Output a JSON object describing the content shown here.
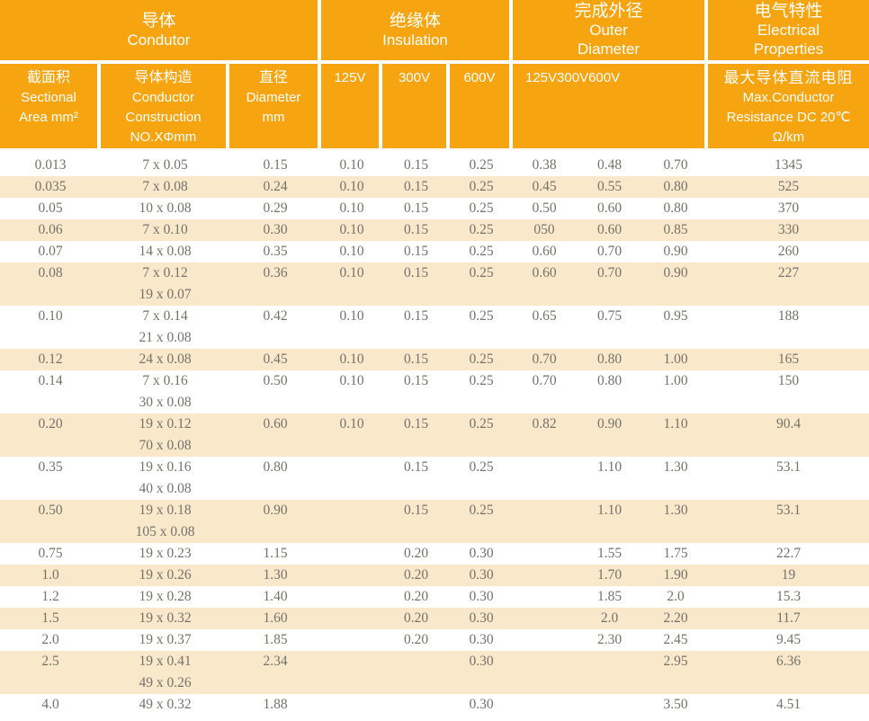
{
  "colors": {
    "header_orange": "#F6A40F",
    "stripe_cream": "#FAE8CB",
    "text_gray": "#73726B",
    "header_text": "#FFFFFF"
  },
  "header": {
    "groups": {
      "conductor": [
        "导体",
        "Condutor"
      ],
      "insulation": [
        "绝缘体",
        "Insulation"
      ],
      "outer_diameter": [
        "完成外径",
        "Outer",
        "Diameter"
      ],
      "electrical": [
        "电气特性",
        "Electrical",
        "Properties"
      ]
    },
    "sub": {
      "sectional_area": [
        "截面积",
        "Sectional",
        "Area mm²"
      ],
      "construction": [
        "导体构造",
        "Conductor",
        "Construction",
        "NO.XΦmm"
      ],
      "diameter": [
        "直径",
        "Diameter",
        "mm"
      ],
      "insulation_voltages": [
        "125V",
        "300V",
        "600V"
      ],
      "outer_diameter_voltages": [
        "125V",
        "300V",
        "600V"
      ],
      "resistance": [
        "最大导体直流电阻",
        "Max.Conductor",
        "Resistance DC 20℃",
        "Ω/km"
      ]
    }
  },
  "rows": [
    {
      "area": "0.013",
      "construction": [
        "7 x 0.05"
      ],
      "diameter": "0.15",
      "ins": [
        "0.10",
        "0.15",
        "0.25"
      ],
      "od": [
        "0.38",
        "0.48",
        "0.70"
      ],
      "resistance": "1345"
    },
    {
      "area": "0.035",
      "construction": [
        "7 x 0.08"
      ],
      "diameter": "0.24",
      "ins": [
        "0.10",
        "0.15",
        "0.25"
      ],
      "od": [
        "0.45",
        "0.55",
        "0.80"
      ],
      "resistance": "525"
    },
    {
      "area": "0.05",
      "construction": [
        "10 x 0.08"
      ],
      "diameter": "0.29",
      "ins": [
        "0.10",
        "0.15",
        "0.25"
      ],
      "od": [
        "0.50",
        "0.60",
        "0.80"
      ],
      "resistance": "370"
    },
    {
      "area": "0.06",
      "construction": [
        "7 x 0.10"
      ],
      "diameter": "0.30",
      "ins": [
        "0.10",
        "0.15",
        "0.25"
      ],
      "od": [
        "050",
        "0.60",
        "0.85"
      ],
      "resistance": "330"
    },
    {
      "area": "0.07",
      "construction": [
        "14 x 0.08"
      ],
      "diameter": "0.35",
      "ins": [
        "0.10",
        "0.15",
        "0.25"
      ],
      "od": [
        "0.60",
        "0.70",
        "0.90"
      ],
      "resistance": "260"
    },
    {
      "area": "0.08",
      "construction": [
        "7 x 0.12",
        "19 x 0.07"
      ],
      "diameter": "0.36",
      "ins": [
        "0.10",
        "0.15",
        "0.25"
      ],
      "od": [
        "0.60",
        "0.70",
        "0.90"
      ],
      "resistance": "227"
    },
    {
      "area": "0.10",
      "construction": [
        "7 x 0.14",
        "21 x 0.08"
      ],
      "diameter": "0.42",
      "ins": [
        "0.10",
        "0.15",
        "0.25"
      ],
      "od": [
        "0.65",
        "0.75",
        "0.95"
      ],
      "resistance": "188"
    },
    {
      "area": "0.12",
      "construction": [
        "24 x 0.08"
      ],
      "diameter": "0.45",
      "ins": [
        "0.10",
        "0.15",
        "0.25"
      ],
      "od": [
        "0.70",
        "0.80",
        "1.00"
      ],
      "resistance": "165"
    },
    {
      "area": "0.14",
      "construction": [
        "7 x 0.16",
        "30 x 0.08"
      ],
      "diameter": "0.50",
      "ins": [
        "0.10",
        "0.15",
        "0.25"
      ],
      "od": [
        "0.70",
        "0.80",
        "1.00"
      ],
      "resistance": "150"
    },
    {
      "area": "0.20",
      "construction": [
        "19 x 0.12",
        "70 x 0.08"
      ],
      "diameter": "0.60",
      "ins": [
        "0.10",
        "0.15",
        "0.25"
      ],
      "od": [
        "0.82",
        "0.90",
        "1.10"
      ],
      "resistance": "90.4"
    },
    {
      "area": "0.35",
      "construction": [
        "19 x 0.16",
        "40 x 0.08"
      ],
      "diameter": "0.80",
      "ins": [
        "",
        "0.15",
        "0.25"
      ],
      "od": [
        "",
        "1.10",
        "1.30"
      ],
      "resistance": "53.1"
    },
    {
      "area": "0.50",
      "construction": [
        "19 x 0.18",
        "105 x 0.08"
      ],
      "diameter": "0.90",
      "ins": [
        "",
        "0.15",
        "0.25"
      ],
      "od": [
        "",
        "1.10",
        "1.30"
      ],
      "resistance": "53.1"
    },
    {
      "area": "0.75",
      "construction": [
        "19 x 0.23"
      ],
      "diameter": "1.15",
      "ins": [
        "",
        "0.20",
        "0.30"
      ],
      "od": [
        "",
        "1.55",
        "1.75"
      ],
      "resistance": "22.7"
    },
    {
      "area": "1.0",
      "construction": [
        "19 x 0.26"
      ],
      "diameter": "1.30",
      "ins": [
        "",
        "0.20",
        "0.30"
      ],
      "od": [
        "",
        "1.70",
        "1.90"
      ],
      "resistance": "19"
    },
    {
      "area": "1.2",
      "construction": [
        "19 x 0.28"
      ],
      "diameter": "1.40",
      "ins": [
        "",
        "0.20",
        "0.30"
      ],
      "od": [
        "",
        "1.85",
        "2.0"
      ],
      "resistance": "15.3"
    },
    {
      "area": "1.5",
      "construction": [
        "19 x 0.32"
      ],
      "diameter": "1.60",
      "ins": [
        "",
        "0.20",
        "0.30"
      ],
      "od": [
        "",
        "2.0",
        "2.20"
      ],
      "resistance": "11.7"
    },
    {
      "area": "2.0",
      "construction": [
        "19 x 0.37"
      ],
      "diameter": "1.85",
      "ins": [
        "",
        "0.20",
        "0.30"
      ],
      "od": [
        "",
        "2.30",
        "2.45"
      ],
      "resistance": "9.45"
    },
    {
      "area": "2.5",
      "construction": [
        "19 x 0.41",
        "49 x 0.26"
      ],
      "diameter": "2.34",
      "ins": [
        "",
        "",
        "0.30"
      ],
      "od": [
        "",
        "",
        "2.95"
      ],
      "resistance": "6.36"
    },
    {
      "area": "4.0",
      "construction": [
        "49 x 0.32"
      ],
      "diameter": "1.88",
      "ins": [
        "",
        "",
        "0.30"
      ],
      "od": [
        "",
        "",
        "3.50"
      ],
      "resistance": "4.51"
    }
  ]
}
